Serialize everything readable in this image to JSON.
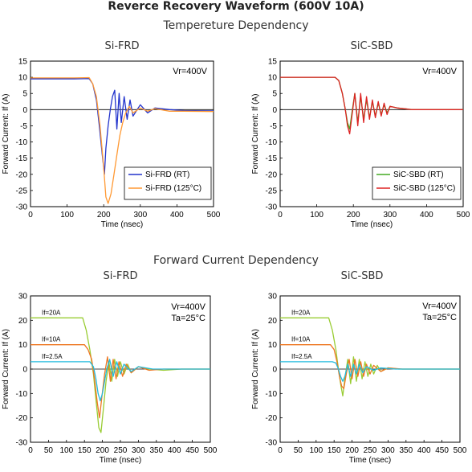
{
  "title": "Reverce Recovery Waveform (600V 10A)",
  "sections": [
    {
      "label": "Tempereture Dependency"
    },
    {
      "label": "Forward Current Dependency"
    }
  ],
  "chart_data": [
    {
      "type": "line",
      "title": "Si-FRD",
      "xlabel": "Time (nsec)",
      "ylabel": "Forward Current: If (A)",
      "xlim": [
        0,
        500
      ],
      "ylim": [
        -30,
        15
      ],
      "xticks": [
        0,
        100,
        200,
        300,
        400,
        500
      ],
      "yticks": [
        15,
        10,
        5,
        0,
        -5,
        -10,
        -15,
        -20,
        -25,
        -30
      ],
      "annotation": "Vr=400V",
      "legend": "bottom-right",
      "series": [
        {
          "name": "Si-FRD (RT)",
          "color": "#2233cc",
          "x": [
            0,
            60,
            120,
            160,
            170,
            180,
            188,
            196,
            202,
            206,
            212,
            218,
            224,
            230,
            236,
            242,
            248,
            256,
            264,
            272,
            280,
            300,
            320,
            340,
            380,
            420,
            500
          ],
          "values": [
            9.5,
            9.5,
            9.5,
            9.6,
            8,
            3,
            -5,
            -14,
            -20,
            -12,
            -5,
            0,
            4,
            6,
            -6,
            5,
            -4,
            4,
            -3,
            3,
            -2,
            1.5,
            -1,
            0.5,
            0,
            -0.3,
            -0.4
          ]
        },
        {
          "name": "Si-FRD (125°C)",
          "color": "#ff9933",
          "x": [
            0,
            60,
            120,
            160,
            170,
            180,
            190,
            200,
            206,
            212,
            220,
            228,
            236,
            244,
            252,
            260,
            270,
            280,
            300,
            320,
            340,
            380,
            420,
            500
          ],
          "values": [
            9.8,
            9.8,
            9.8,
            9.9,
            8,
            4,
            -5,
            -18,
            -27,
            -29,
            -26,
            -20,
            -14,
            -8,
            -4,
            -1,
            1,
            -1,
            0.5,
            -0.5,
            0.3,
            -0.5,
            -0.5,
            -0.6
          ]
        }
      ]
    },
    {
      "type": "line",
      "title": "SiC-SBD",
      "xlabel": "Time (nsec)",
      "ylabel": "Forward Current: If (A)",
      "xlim": [
        0,
        500
      ],
      "ylim": [
        -30,
        15
      ],
      "xticks": [
        0,
        100,
        200,
        300,
        400,
        500
      ],
      "yticks": [
        15,
        10,
        5,
        0,
        -5,
        -10,
        -15,
        -20,
        -25,
        -30
      ],
      "annotation": "Vr=400V",
      "legend": "bottom-right",
      "series": [
        {
          "name": "SiC-SBD (RT)",
          "color": "#44aa22",
          "x": [
            0,
            60,
            120,
            150,
            160,
            170,
            178,
            184,
            190,
            196,
            204,
            212,
            220,
            228,
            236,
            244,
            252,
            260,
            268,
            276,
            284,
            292,
            300,
            320,
            360,
            420,
            500
          ],
          "values": [
            10,
            10,
            10,
            10,
            9,
            5,
            0,
            -4,
            -6,
            -1,
            5,
            -4,
            4,
            -3,
            3,
            -2.5,
            2.5,
            -2,
            2,
            -1.5,
            1.5,
            -1,
            1,
            0.5,
            0,
            0,
            0
          ]
        },
        {
          "name": "SiC-SBD (125°C)",
          "color": "#dd2222",
          "x": [
            0,
            60,
            120,
            150,
            160,
            170,
            178,
            184,
            190,
            196,
            204,
            212,
            220,
            228,
            236,
            244,
            252,
            260,
            268,
            276,
            284,
            292,
            300,
            320,
            360,
            420,
            500
          ],
          "values": [
            10,
            10,
            10,
            10,
            9,
            5,
            0,
            -5,
            -7.5,
            -2,
            5,
            -5,
            5,
            -4,
            4,
            -3,
            3,
            -2.5,
            2.5,
            -2,
            2,
            -1.5,
            1,
            0.5,
            0,
            0,
            0
          ]
        }
      ]
    },
    {
      "type": "line",
      "title": "Si-FRD",
      "xlabel": "Time (nsec)",
      "ylabel": "Forward Current: If (A)",
      "xlim": [
        0,
        500
      ],
      "ylim": [
        -30,
        30
      ],
      "xticks": [
        0,
        50,
        100,
        150,
        200,
        250,
        300,
        350,
        400,
        450,
        500
      ],
      "yticks": [
        30,
        20,
        10,
        0,
        -10,
        -20,
        -30
      ],
      "annotation": "Vr=400V",
      "annotation2": "Ta=25°C",
      "level_labels": [
        "If=20A",
        "If=10A",
        "If=2.5A"
      ],
      "series": [
        {
          "name": "If=20A",
          "color": "#99cc33",
          "x": [
            0,
            60,
            120,
            145,
            155,
            165,
            175,
            183,
            190,
            196,
            203,
            210,
            218,
            226,
            234,
            242,
            250,
            260,
            270,
            280,
            300,
            330,
            370,
            420,
            500
          ],
          "values": [
            21,
            21,
            21,
            21,
            16,
            8,
            -2,
            -14,
            -24,
            -26,
            -16,
            -5,
            3,
            -5,
            4,
            -3,
            3,
            -2,
            2,
            -1.5,
            1,
            0,
            -0.5,
            0,
            0
          ]
        },
        {
          "name": "If=10A",
          "color": "#ee7722",
          "x": [
            0,
            60,
            120,
            150,
            160,
            170,
            178,
            186,
            192,
            198,
            206,
            214,
            222,
            230,
            238,
            246,
            256,
            266,
            280,
            300,
            330,
            370,
            420,
            500
          ],
          "values": [
            10,
            10,
            10,
            10,
            8,
            4,
            -4,
            -14,
            -20,
            -12,
            -2,
            5,
            -5,
            4,
            -4,
            3,
            -3,
            2,
            -1.5,
            1,
            -0.5,
            0,
            0,
            0
          ]
        },
        {
          "name": "If=2.5A",
          "color": "#22bbdd",
          "x": [
            0,
            60,
            120,
            150,
            165,
            175,
            182,
            188,
            194,
            200,
            206,
            212,
            220,
            230,
            240,
            250,
            260,
            280,
            300,
            340,
            400,
            500
          ],
          "values": [
            3,
            3,
            3,
            3,
            3,
            1,
            -4,
            -10,
            -13,
            -10,
            -5,
            0,
            4,
            -3,
            3,
            -2,
            2,
            -1,
            1,
            0,
            0,
            0
          ]
        }
      ]
    },
    {
      "type": "line",
      "title": "SiC-SBD",
      "xlabel": "Time (nsec)",
      "ylabel": "Forward Current: If (A)",
      "xlim": [
        0,
        500
      ],
      "ylim": [
        -30,
        30
      ],
      "xticks": [
        0,
        50,
        100,
        150,
        200,
        250,
        300,
        350,
        400,
        450,
        500
      ],
      "yticks": [
        30,
        20,
        10,
        0,
        -10,
        -20,
        -30
      ],
      "annotation": "Vr=400V",
      "annotation2": "Ta=25°C",
      "level_labels": [
        "If=20A",
        "If=10A",
        "If=2.5A"
      ],
      "series": [
        {
          "name": "If=20A",
          "color": "#99cc33",
          "x": [
            0,
            60,
            120,
            135,
            145,
            155,
            162,
            168,
            174,
            180,
            188,
            196,
            204,
            212,
            220,
            228,
            236,
            244,
            252,
            260,
            270,
            280,
            300,
            330,
            380,
            500
          ],
          "values": [
            21,
            21,
            21,
            21,
            16,
            8,
            0,
            -6,
            -11,
            -4,
            4,
            -6,
            5,
            -5,
            4,
            -4,
            3,
            -3,
            2,
            -2,
            1.5,
            -1,
            0.5,
            0,
            0,
            0
          ]
        },
        {
          "name": "If=10A",
          "color": "#ee7722",
          "x": [
            0,
            60,
            120,
            140,
            150,
            158,
            165,
            171,
            177,
            184,
            192,
            200,
            208,
            216,
            224,
            232,
            240,
            250,
            260,
            280,
            300,
            340,
            400,
            500
          ],
          "values": [
            10,
            10,
            10,
            10,
            8,
            3,
            -3,
            -7,
            -8,
            -2,
            4,
            -4,
            4,
            -3,
            3,
            -3,
            2,
            -2,
            1.5,
            -1,
            0.5,
            0,
            0,
            0
          ]
        },
        {
          "name": "If=2.5A",
          "color": "#22bbdd",
          "x": [
            0,
            60,
            120,
            145,
            155,
            162,
            168,
            174,
            180,
            188,
            196,
            204,
            212,
            220,
            230,
            240,
            260,
            280,
            320,
            400,
            500
          ],
          "values": [
            3,
            3,
            3,
            3,
            2.5,
            0,
            -3,
            -5,
            -3,
            2,
            -3,
            2,
            -2,
            2,
            -1.5,
            1,
            -0.5,
            0.5,
            0,
            0,
            0
          ]
        }
      ]
    }
  ]
}
